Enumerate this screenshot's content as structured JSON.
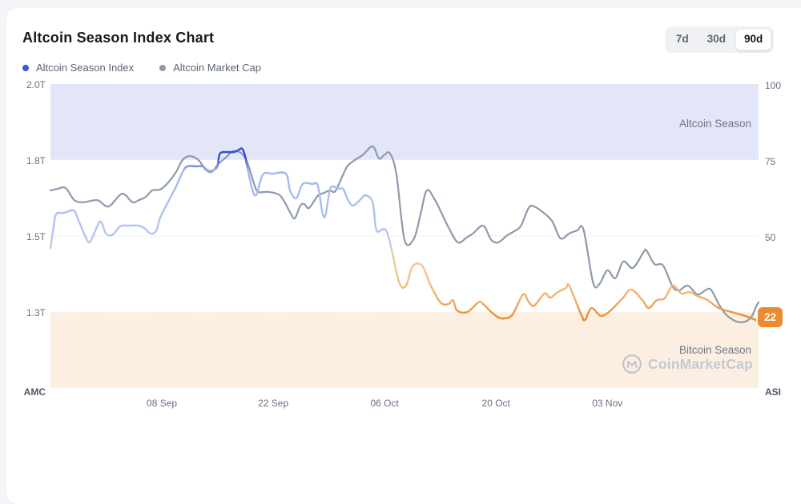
{
  "header": {
    "title": "Altcoin Season Index Chart",
    "ranges": [
      {
        "label": "7d",
        "active": false
      },
      {
        "label": "30d",
        "active": false
      },
      {
        "label": "90d",
        "active": true
      }
    ]
  },
  "legend": [
    {
      "label": "Altcoin Season Index",
      "color": "#3a56e4"
    },
    {
      "label": "Altcoin Market Cap",
      "color": "#8e99ab"
    }
  ],
  "bands": {
    "altcoin": {
      "label": "Altcoin Season",
      "range": [
        75,
        100
      ],
      "color": "#e3e6f8"
    },
    "bitcoin": {
      "label": "Bitcoin Season",
      "range": [
        0,
        25
      ],
      "color": "#fcefe2"
    }
  },
  "badge": {
    "value": "22",
    "color": "#ec8a2f"
  },
  "watermark": {
    "text": "CoinMarketCap"
  },
  "chart_data": {
    "type": "line",
    "title": "Altcoin Season Index Chart",
    "x_unit": "days_from_start",
    "x_range": [
      0,
      89
    ],
    "x_ticks": [
      {
        "label": "08 Sep",
        "day": 14
      },
      {
        "label": "22 Sep",
        "day": 28
      },
      {
        "label": "06 Oct",
        "day": 42
      },
      {
        "label": "20 Oct",
        "day": 56
      },
      {
        "label": "03 Nov",
        "day": 70
      }
    ],
    "left_axis": {
      "caption": "AMC",
      "range": [
        1.0,
        2.0
      ],
      "unit": "T",
      "ticks": [
        {
          "label": "2.0T",
          "value": 2.0
        },
        {
          "label": "1.8T",
          "value": 1.75
        },
        {
          "label": "1.5T",
          "value": 1.5
        },
        {
          "label": "1.3T",
          "value": 1.25
        }
      ]
    },
    "right_axis": {
      "caption": "ASI",
      "range": [
        0,
        100
      ],
      "ticks": [
        {
          "label": "100",
          "value": 100
        },
        {
          "label": "75",
          "value": 75
        },
        {
          "label": "50",
          "value": 50
        }
      ]
    },
    "grid": "dotted",
    "legend_position": "top-left",
    "last_index_value": 22,
    "series": [
      {
        "name": "Altcoin Season Index",
        "axis": "right",
        "style": "gradient",
        "gradient_stops": [
          [
            0,
            "#2140d2"
          ],
          [
            0.245,
            "#2e4ede"
          ],
          [
            0.285,
            "#a2b6f2"
          ],
          [
            0.5,
            "#b5c4f6"
          ],
          [
            0.56,
            "#eec9a0"
          ],
          [
            0.63,
            "#f4c38c"
          ],
          [
            0.71,
            "#f1ad6a"
          ],
          [
            0.79,
            "#e67f1f"
          ],
          [
            1,
            "#e67f1f"
          ]
        ],
        "points": [
          [
            0,
            46
          ],
          [
            0.3,
            51.3
          ],
          [
            0.7,
            57.1
          ],
          [
            1.7,
            57.6
          ],
          [
            2.9,
            58.4
          ],
          [
            3.5,
            55.3
          ],
          [
            4.5,
            49.2
          ],
          [
            5,
            48.2
          ],
          [
            6,
            53.9
          ],
          [
            6.4,
            54.5
          ],
          [
            7,
            50.8
          ],
          [
            7.8,
            50.4
          ],
          [
            8.8,
            53.2
          ],
          [
            10,
            53.4
          ],
          [
            11.1,
            53.4
          ],
          [
            11.8,
            52.6
          ],
          [
            12.6,
            50.8
          ],
          [
            13.3,
            51.8
          ],
          [
            13.8,
            56.1
          ],
          [
            14.8,
            61.3
          ],
          [
            15.8,
            66.3
          ],
          [
            16.6,
            71
          ],
          [
            17.2,
            72.9
          ],
          [
            18.3,
            72.9
          ],
          [
            19.1,
            72.9
          ],
          [
            19.8,
            71.6
          ],
          [
            20.6,
            71.8
          ],
          [
            21,
            73
          ],
          [
            21.3,
            77.1
          ],
          [
            22.2,
            77.6
          ],
          [
            23.1,
            77.6
          ],
          [
            23.7,
            78.4
          ],
          [
            24.1,
            78.7
          ],
          [
            24.5,
            76
          ],
          [
            24.7,
            73.2
          ],
          [
            25.4,
            65
          ],
          [
            25.9,
            63.7
          ],
          [
            26.7,
            70.2
          ],
          [
            27.9,
            70.5
          ],
          [
            29.6,
            70.5
          ],
          [
            30.1,
            65
          ],
          [
            30.9,
            62.4
          ],
          [
            31.7,
            67.1
          ],
          [
            32.9,
            67.1
          ],
          [
            33.6,
            66.6
          ],
          [
            34.2,
            57.4
          ],
          [
            34.6,
            57.1
          ],
          [
            35.2,
            65.8
          ],
          [
            36.2,
            65.5
          ],
          [
            36.8,
            65.5
          ],
          [
            37.3,
            62.4
          ],
          [
            38,
            60
          ],
          [
            39,
            62.1
          ],
          [
            39.6,
            63.4
          ],
          [
            40.5,
            61.1
          ],
          [
            41,
            51.8
          ],
          [
            42.3,
            51.3
          ],
          [
            43.8,
            35
          ],
          [
            44.7,
            33.7
          ],
          [
            45.5,
            40
          ],
          [
            46.7,
            40.3
          ],
          [
            47.7,
            34.2
          ],
          [
            49,
            28.2
          ],
          [
            50,
            27.6
          ],
          [
            50.6,
            28.9
          ],
          [
            51.1,
            25.5
          ],
          [
            52.4,
            25
          ],
          [
            53.8,
            28.2
          ],
          [
            54.4,
            27.6
          ],
          [
            55.4,
            25
          ],
          [
            56.3,
            23.2
          ],
          [
            57.1,
            22.9
          ],
          [
            58.1,
            24.2
          ],
          [
            59.4,
            30.8
          ],
          [
            60.1,
            28.4
          ],
          [
            60.8,
            27.1
          ],
          [
            62.1,
            31.1
          ],
          [
            62.8,
            29.7
          ],
          [
            63.8,
            31.6
          ],
          [
            64.8,
            32.9
          ],
          [
            65.2,
            33.7
          ],
          [
            66.7,
            24.2
          ],
          [
            67.2,
            22.4
          ],
          [
            68,
            26.3
          ],
          [
            69.2,
            23.7
          ],
          [
            70.4,
            25.5
          ],
          [
            71.9,
            29.5
          ],
          [
            73,
            32.4
          ],
          [
            74.4,
            28.9
          ],
          [
            75.2,
            26.3
          ],
          [
            76.2,
            28.9
          ],
          [
            77.2,
            29.5
          ],
          [
            78.2,
            33.7
          ],
          [
            79.3,
            31.1
          ],
          [
            80.3,
            31.6
          ],
          [
            81.3,
            30.3
          ],
          [
            82.6,
            28.9
          ],
          [
            84,
            26.3
          ],
          [
            85.6,
            25
          ],
          [
            87.3,
            23.7
          ],
          [
            89,
            22
          ]
        ]
      },
      {
        "name": "Altcoin Market Cap",
        "axis": "left",
        "style": "solid",
        "color": "#8e99ab",
        "points": [
          [
            0,
            1.65
          ],
          [
            0.9,
            1.655
          ],
          [
            1.9,
            1.658
          ],
          [
            3,
            1.618
          ],
          [
            4.2,
            1.611
          ],
          [
            5.9,
            1.618
          ],
          [
            7.3,
            1.597
          ],
          [
            9,
            1.639
          ],
          [
            10.3,
            1.611
          ],
          [
            11.1,
            1.618
          ],
          [
            12,
            1.629
          ],
          [
            12.8,
            1.65
          ],
          [
            13.8,
            1.653
          ],
          [
            14.8,
            1.676
          ],
          [
            15.8,
            1.711
          ],
          [
            16.6,
            1.75
          ],
          [
            17.5,
            1.763
          ],
          [
            18.6,
            1.75
          ],
          [
            19.5,
            1.718
          ],
          [
            20.3,
            1.711
          ],
          [
            21.1,
            1.737
          ],
          [
            22.2,
            1.762
          ],
          [
            22.9,
            1.779
          ],
          [
            23.9,
            1.774
          ],
          [
            24.7,
            1.745
          ],
          [
            25.6,
            1.671
          ],
          [
            26.1,
            1.645
          ],
          [
            27.4,
            1.645
          ],
          [
            28.9,
            1.632
          ],
          [
            30.1,
            1.579
          ],
          [
            30.7,
            1.558
          ],
          [
            31.4,
            1.6
          ],
          [
            31.9,
            1.605
          ],
          [
            32.5,
            1.592
          ],
          [
            33.6,
            1.632
          ],
          [
            34.4,
            1.642
          ],
          [
            35.1,
            1.65
          ],
          [
            35.8,
            1.647
          ],
          [
            36.7,
            1.697
          ],
          [
            37.3,
            1.729
          ],
          [
            38,
            1.745
          ],
          [
            39.3,
            1.768
          ],
          [
            40.5,
            1.795
          ],
          [
            41.3,
            1.755
          ],
          [
            42,
            1.768
          ],
          [
            42.7,
            1.771
          ],
          [
            43.5,
            1.7
          ],
          [
            44.5,
            1.487
          ],
          [
            45.7,
            1.492
          ],
          [
            46.5,
            1.57
          ],
          [
            47.3,
            1.65
          ],
          [
            48.3,
            1.62
          ],
          [
            49,
            1.584
          ],
          [
            50,
            1.53
          ],
          [
            51.2,
            1.479
          ],
          [
            52.3,
            1.495
          ],
          [
            53.1,
            1.508
          ],
          [
            54.4,
            1.534
          ],
          [
            55.4,
            1.487
          ],
          [
            56.3,
            1.479
          ],
          [
            57.3,
            1.5
          ],
          [
            58.1,
            1.513
          ],
          [
            59.1,
            1.532
          ],
          [
            60.1,
            1.592
          ],
          [
            60.8,
            1.597
          ],
          [
            62.1,
            1.574
          ],
          [
            63.1,
            1.547
          ],
          [
            64.1,
            1.492
          ],
          [
            65.2,
            1.508
          ],
          [
            66.2,
            1.518
          ],
          [
            67,
            1.521
          ],
          [
            68.2,
            1.347
          ],
          [
            69,
            1.342
          ],
          [
            70,
            1.387
          ],
          [
            71,
            1.361
          ],
          [
            72,
            1.416
          ],
          [
            73.2,
            1.395
          ],
          [
            74.5,
            1.445
          ],
          [
            74.9,
            1.453
          ],
          [
            75.9,
            1.408
          ],
          [
            77,
            1.403
          ],
          [
            78.2,
            1.334
          ],
          [
            79,
            1.321
          ],
          [
            80.1,
            1.337
          ],
          [
            81.3,
            1.308
          ],
          [
            82.3,
            1.321
          ],
          [
            83,
            1.324
          ],
          [
            84,
            1.276
          ],
          [
            84.8,
            1.245
          ],
          [
            85.5,
            1.229
          ],
          [
            86.3,
            1.218
          ],
          [
            87.3,
            1.218
          ],
          [
            88.1,
            1.234
          ],
          [
            88.7,
            1.268
          ],
          [
            89,
            1.282
          ]
        ]
      }
    ]
  }
}
